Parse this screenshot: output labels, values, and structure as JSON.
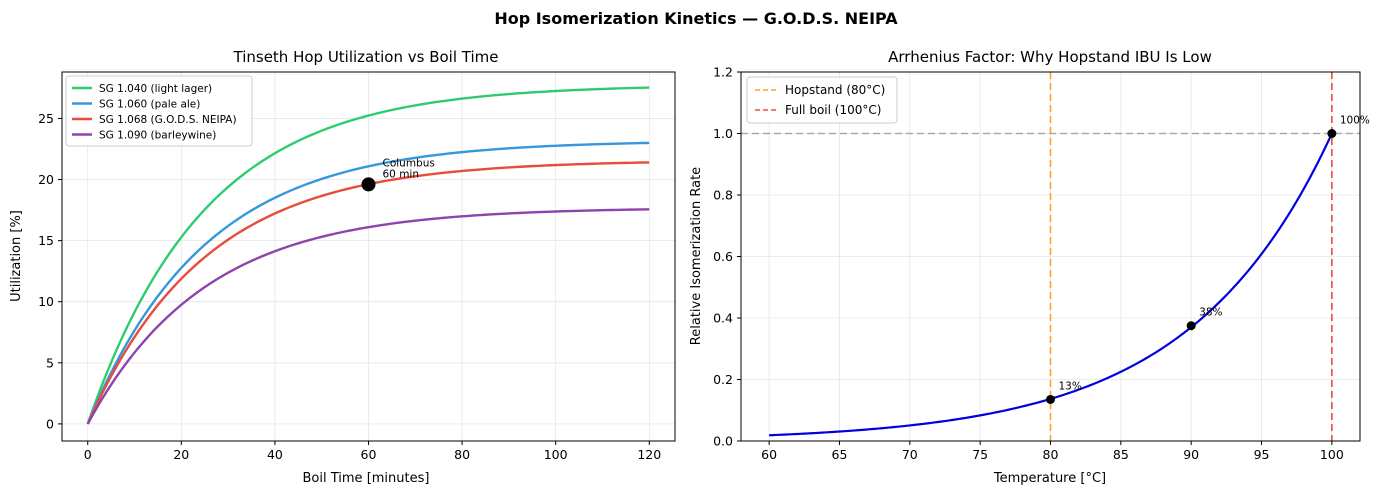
{
  "figure": {
    "suptitle": "Hop Isomerization Kinetics — G.O.D.S. NEIPA"
  },
  "chart_data": [
    {
      "type": "line",
      "title": "Tinseth Hop Utilization vs Boil Time",
      "xlabel": "Boil Time [minutes]",
      "ylabel": "Utilization [%]",
      "xlim": [
        -5.5,
        125.5
      ],
      "ylim": [
        -1.4,
        28.8
      ],
      "xticks": [
        0,
        20,
        40,
        60,
        80,
        100,
        120
      ],
      "yticks": [
        0,
        5,
        10,
        15,
        20,
        25
      ],
      "grid": true,
      "legend_position": "top-left",
      "model": "tinseth",
      "x_range": [
        0,
        120
      ],
      "series": [
        {
          "name": "SG 1.040 (light lager)",
          "og": 1.04,
          "color": "#2ecc71"
        },
        {
          "name": "SG 1.060 (pale ale)",
          "og": 1.06,
          "color": "#3498db"
        },
        {
          "name": "SG 1.068 (G.O.D.S. NEIPA)",
          "og": 1.068,
          "color": "#e74c3c"
        },
        {
          "name": "SG 1.090 (barleywine)",
          "og": 1.09,
          "color": "#8e44ad"
        }
      ],
      "annotations": [
        {
          "x": 60,
          "y": 19.6,
          "lines": [
            "Columbus",
            "60 min"
          ]
        }
      ]
    },
    {
      "type": "line",
      "title": "Arrhenius Factor: Why Hopstand IBU Is Low",
      "xlabel": "Temperature [°C]",
      "ylabel": "Relative Isomerization Rate",
      "xlim": [
        58,
        102
      ],
      "ylim": [
        0,
        1.2
      ],
      "xticks": [
        60,
        65,
        70,
        75,
        80,
        85,
        90,
        95,
        100
      ],
      "yticks": [
        0.0,
        0.2,
        0.4,
        0.6,
        0.8,
        1.0,
        1.2
      ],
      "grid": true,
      "legend_position": "top-left",
      "model": "exponential",
      "x_range": [
        60,
        100
      ],
      "curve": {
        "color": "#0000e0",
        "reference": [
          100,
          1.0
        ],
        "factor_per_10C": 0.37
      },
      "vlines": [
        {
          "name": "Hopstand (80°C)",
          "x": 80,
          "color": "#f5a623"
        },
        {
          "name": "Full boil (100°C)",
          "x": 100,
          "color": "#e74c3c"
        }
      ],
      "hline": {
        "y": 1.0,
        "color": "#999999"
      },
      "points": [
        {
          "x": 80,
          "y": 0.135,
          "label": "13%"
        },
        {
          "x": 90,
          "y": 0.375,
          "label": "38%"
        },
        {
          "x": 100,
          "y": 1.0,
          "label": "100%"
        }
      ]
    }
  ]
}
